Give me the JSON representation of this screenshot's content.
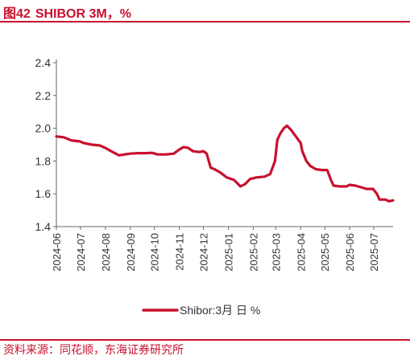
{
  "header": {
    "figure_number": "图42",
    "title": "SHIBOR 3M，%"
  },
  "source": "资料来源：同花顺，东海证券研究所",
  "chart_data": {
    "type": "line",
    "title": "SHIBOR 3M，%",
    "xlabel": "",
    "ylabel": "",
    "x_range": [
      "2024-06-01",
      "2025-07-25"
    ],
    "ylim": [
      1.4,
      2.4
    ],
    "y_ticks": [
      1.4,
      1.6,
      1.8,
      2.0,
      2.2,
      2.4
    ],
    "y_tick_labels": [
      "1.4",
      "1.6",
      "1.8",
      "2.0",
      "2.2",
      "2.4"
    ],
    "x_ticks": [
      "2024-06",
      "2024-07",
      "2024-08",
      "2024-09",
      "2024-10",
      "2024-11",
      "2024-12",
      "2025-01",
      "2025-02",
      "2025-03",
      "2025-04",
      "2025-05",
      "2025-06",
      "2025-07"
    ],
    "grid": false,
    "legend_position": "bottom",
    "series": [
      {
        "name": "Shibor:3月 日 %",
        "color": "#c8102e",
        "points": [
          [
            "2024-06-01",
            1.95
          ],
          [
            "2024-06-10",
            1.945
          ],
          [
            "2024-06-20",
            1.925
          ],
          [
            "2024-06-30",
            1.92
          ],
          [
            "2024-07-05",
            1.91
          ],
          [
            "2024-07-15",
            1.9
          ],
          [
            "2024-07-25",
            1.895
          ],
          [
            "2024-08-01",
            1.88
          ],
          [
            "2024-08-10",
            1.855
          ],
          [
            "2024-08-18",
            1.835
          ],
          [
            "2024-08-25",
            1.84
          ],
          [
            "2024-09-01",
            1.845
          ],
          [
            "2024-09-10",
            1.848
          ],
          [
            "2024-09-20",
            1.848
          ],
          [
            "2024-09-28",
            1.85
          ],
          [
            "2024-10-05",
            1.84
          ],
          [
            "2024-10-15",
            1.84
          ],
          [
            "2024-10-25",
            1.845
          ],
          [
            "2024-11-01",
            1.87
          ],
          [
            "2024-11-06",
            1.885
          ],
          [
            "2024-11-12",
            1.88
          ],
          [
            "2024-11-18",
            1.86
          ],
          [
            "2024-11-26",
            1.855
          ],
          [
            "2024-12-01",
            1.86
          ],
          [
            "2024-12-05",
            1.845
          ],
          [
            "2024-12-10",
            1.76
          ],
          [
            "2024-12-15",
            1.75
          ],
          [
            "2024-12-22",
            1.73
          ],
          [
            "2024-12-30",
            1.7
          ],
          [
            "2025-01-08",
            1.685
          ],
          [
            "2025-01-16",
            1.645
          ],
          [
            "2025-01-22",
            1.66
          ],
          [
            "2025-01-28",
            1.69
          ],
          [
            "2025-02-05",
            1.7
          ],
          [
            "2025-02-15",
            1.705
          ],
          [
            "2025-02-22",
            1.72
          ],
          [
            "2025-02-28",
            1.8
          ],
          [
            "2025-03-03",
            1.93
          ],
          [
            "2025-03-07",
            1.97
          ],
          [
            "2025-03-11",
            2.0
          ],
          [
            "2025-03-15",
            2.015
          ],
          [
            "2025-03-20",
            1.99
          ],
          [
            "2025-03-26",
            1.95
          ],
          [
            "2025-04-01",
            1.91
          ],
          [
            "2025-04-03",
            1.86
          ],
          [
            "2025-04-08",
            1.8
          ],
          [
            "2025-04-13",
            1.77
          ],
          [
            "2025-04-20",
            1.75
          ],
          [
            "2025-04-28",
            1.745
          ],
          [
            "2025-05-04",
            1.745
          ],
          [
            "2025-05-09",
            1.68
          ],
          [
            "2025-05-12",
            1.65
          ],
          [
            "2025-05-20",
            1.645
          ],
          [
            "2025-05-28",
            1.645
          ],
          [
            "2025-06-01",
            1.655
          ],
          [
            "2025-06-08",
            1.65
          ],
          [
            "2025-06-15",
            1.64
          ],
          [
            "2025-06-22",
            1.63
          ],
          [
            "2025-06-30",
            1.63
          ],
          [
            "2025-07-05",
            1.6
          ],
          [
            "2025-07-08",
            1.565
          ],
          [
            "2025-07-15",
            1.565
          ],
          [
            "2025-07-20",
            1.555
          ],
          [
            "2025-07-25",
            1.56
          ]
        ]
      }
    ]
  }
}
